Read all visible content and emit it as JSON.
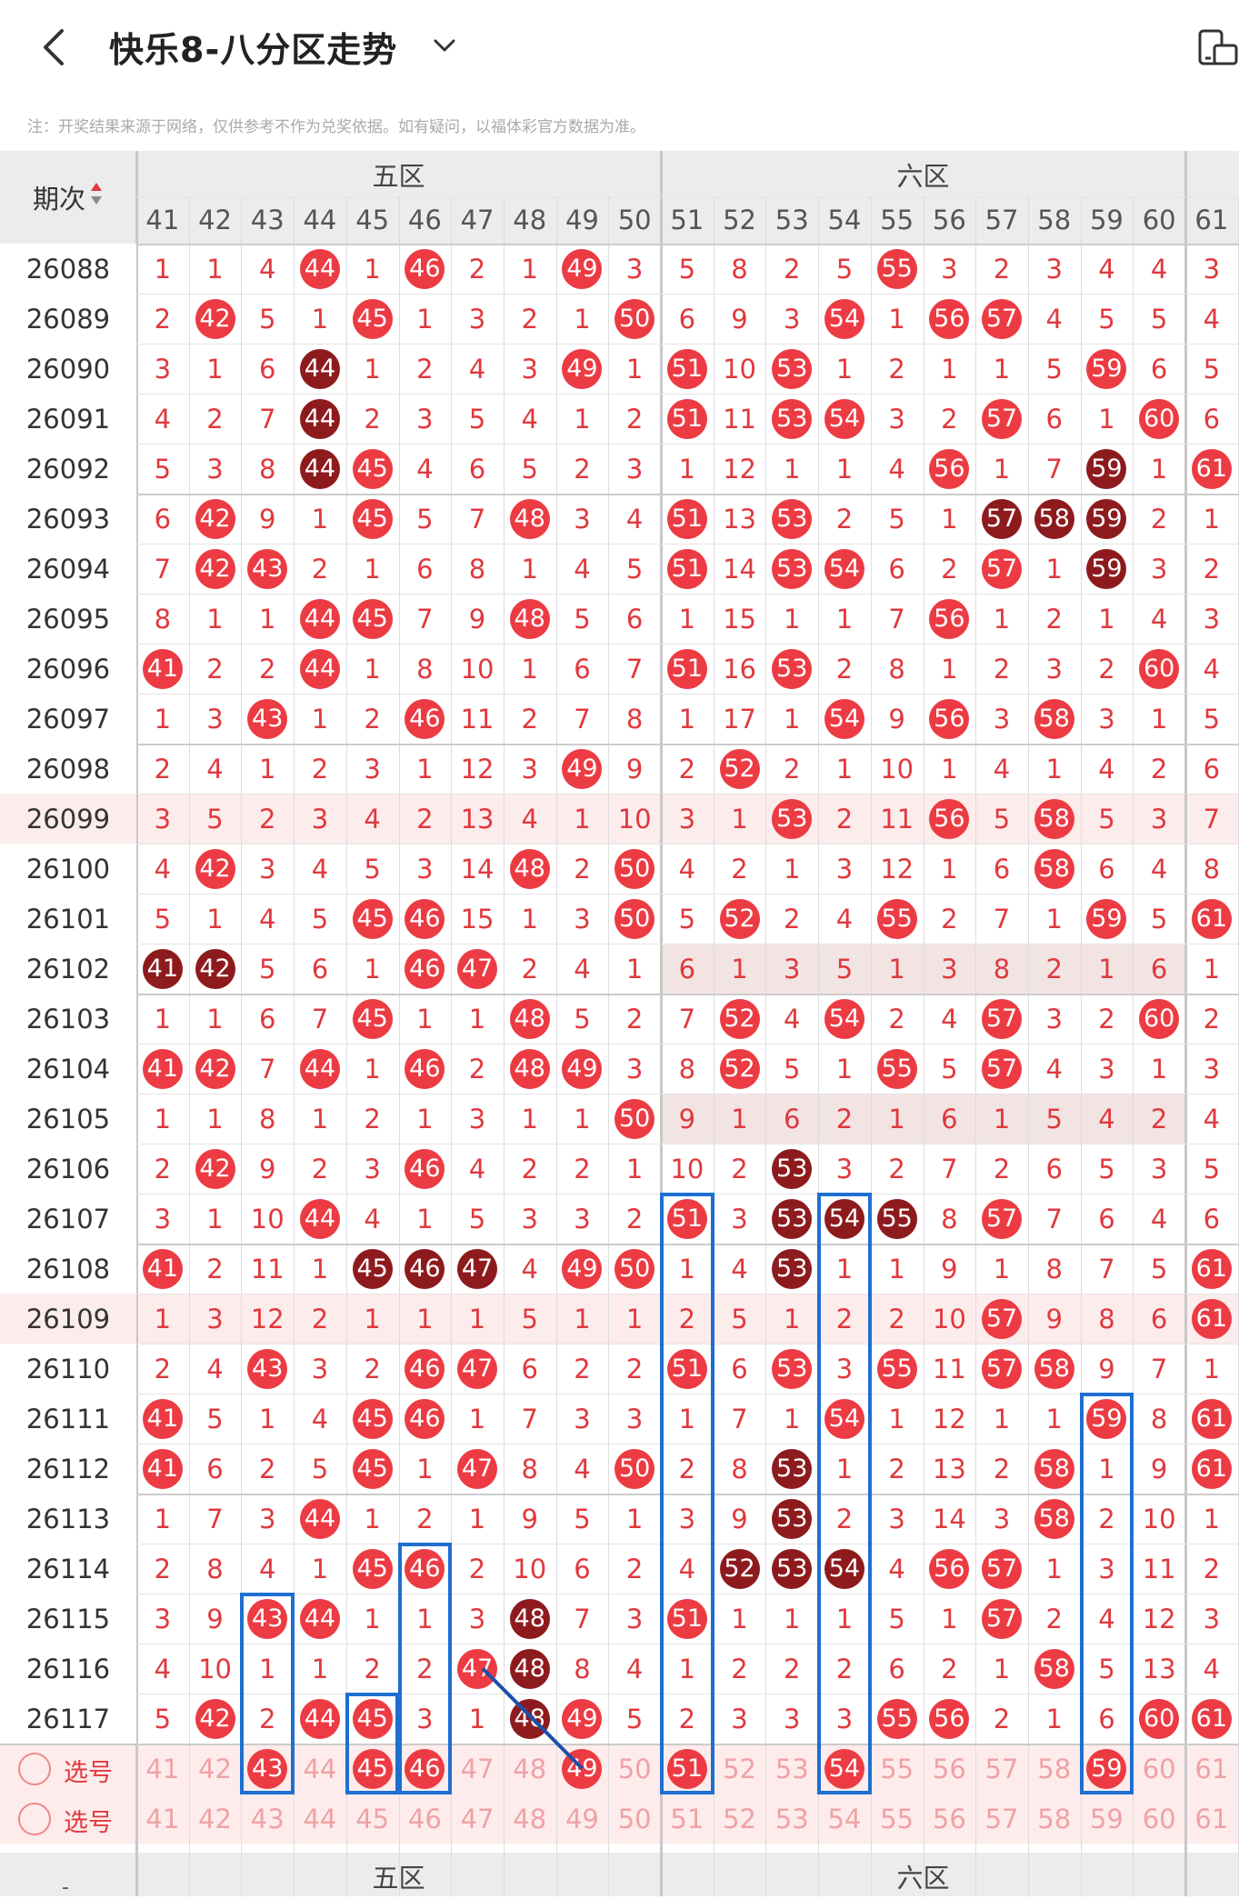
{
  "header": {
    "title": "快乐8-八分区走势",
    "back_icon": "back-arrow-icon",
    "dropdown_icon": "chevron-down-icon",
    "right_icon": "device-toggle-icon"
  },
  "note": "注：开奖结果来源于网络，仅供参考不作为兑奖依据。如有疑问，以福体彩官方数据为准。",
  "table": {
    "period_header": "期次",
    "zones": [
      "五区",
      "六区"
    ],
    "columns": [
      41,
      42,
      43,
      44,
      45,
      46,
      47,
      48,
      49,
      50,
      51,
      52,
      53,
      54,
      55,
      56,
      57,
      58,
      59,
      60,
      61
    ],
    "rows": [
      {
        "period": "26088",
        "cells": [
          "1",
          "1",
          "4",
          "44r",
          "1",
          "46r",
          "2",
          "1",
          "49r",
          "3",
          "5",
          "8",
          "2",
          "5",
          "55r",
          "3",
          "2",
          "3",
          "4",
          "4",
          "3"
        ]
      },
      {
        "period": "26089",
        "cells": [
          "2",
          "42r",
          "5",
          "1",
          "45r",
          "1",
          "3",
          "2",
          "1",
          "50r",
          "6",
          "9",
          "3",
          "54r",
          "1",
          "56r",
          "57r",
          "4",
          "5",
          "5",
          "4"
        ]
      },
      {
        "period": "26090",
        "cells": [
          "3",
          "1",
          "6",
          "44d",
          "1",
          "2",
          "4",
          "3",
          "49r",
          "1",
          "51r",
          "10",
          "53r",
          "1",
          "2",
          "1",
          "1",
          "5",
          "59r",
          "6",
          "5"
        ]
      },
      {
        "period": "26091",
        "cells": [
          "4",
          "2",
          "7",
          "44d",
          "2",
          "3",
          "5",
          "4",
          "1",
          "2",
          "51r",
          "11",
          "53r",
          "54r",
          "3",
          "2",
          "57r",
          "6",
          "1",
          "60r",
          "6"
        ]
      },
      {
        "period": "26092",
        "cells": [
          "5",
          "3",
          "8",
          "44d",
          "45r",
          "4",
          "6",
          "5",
          "2",
          "3",
          "1",
          "12",
          "1",
          "1",
          "4",
          "56r",
          "1",
          "7",
          "59d",
          "1",
          "61r"
        ]
      },
      {
        "period": "26093",
        "cells": [
          "6",
          "42r",
          "9",
          "1",
          "45r",
          "5",
          "7",
          "48r",
          "3",
          "4",
          "51r",
          "13",
          "53r",
          "2",
          "5",
          "1",
          "57d",
          "58d",
          "59d",
          "2",
          "1"
        ]
      },
      {
        "period": "26094",
        "cells": [
          "7",
          "42r",
          "43r",
          "2",
          "1",
          "6",
          "8",
          "1",
          "4",
          "5",
          "51r",
          "14",
          "53r",
          "54r",
          "6",
          "2",
          "57r",
          "1",
          "59d",
          "3",
          "2"
        ]
      },
      {
        "period": "26095",
        "cells": [
          "8",
          "1",
          "1",
          "44r",
          "45r",
          "7",
          "9",
          "48r",
          "5",
          "6",
          "1",
          "15",
          "1",
          "1",
          "7",
          "56r",
          "1",
          "2",
          "1",
          "4",
          "3"
        ]
      },
      {
        "period": "26096",
        "cells": [
          "41r",
          "2",
          "2",
          "44r",
          "1",
          "8",
          "10",
          "1",
          "6",
          "7",
          "51r",
          "16",
          "53r",
          "2",
          "8",
          "1",
          "2",
          "3",
          "2",
          "60r",
          "4"
        ]
      },
      {
        "period": "26097",
        "cells": [
          "1",
          "3",
          "43r",
          "1",
          "2",
          "46r",
          "11",
          "2",
          "7",
          "8",
          "1",
          "17",
          "1",
          "54r",
          "9",
          "56r",
          "3",
          "58r",
          "3",
          "1",
          "5"
        ]
      },
      {
        "period": "26098",
        "cells": [
          "2",
          "4",
          "1",
          "2",
          "3",
          "1",
          "12",
          "3",
          "49r",
          "9",
          "2",
          "52r",
          "2",
          "1",
          "10",
          "1",
          "4",
          "1",
          "4",
          "2",
          "6"
        ]
      },
      {
        "period": "26099",
        "cells": [
          "3",
          "5",
          "2",
          "3",
          "4",
          "2",
          "13",
          "4",
          "1",
          "10",
          "3",
          "1",
          "53r",
          "2",
          "11",
          "56r",
          "5",
          "58r",
          "5",
          "3",
          "7"
        ]
      },
      {
        "period": "26100",
        "cells": [
          "4",
          "42r",
          "3",
          "4",
          "5",
          "3",
          "14",
          "48r",
          "2",
          "50r",
          "4",
          "2",
          "1",
          "3",
          "12",
          "1",
          "6",
          "58r",
          "6",
          "4",
          "8"
        ]
      },
      {
        "period": "26101",
        "cells": [
          "5",
          "1",
          "4",
          "5",
          "45r",
          "46r",
          "15",
          "1",
          "3",
          "50r",
          "5",
          "52r",
          "2",
          "4",
          "55r",
          "2",
          "7",
          "1",
          "59r",
          "5",
          "61r"
        ]
      },
      {
        "period": "26102",
        "cells": [
          "41d",
          "42d",
          "5",
          "6",
          "1",
          "46r",
          "47r",
          "2",
          "4",
          "1",
          "6",
          "1",
          "3",
          "5",
          "1",
          "3",
          "8",
          "2",
          "1",
          "6",
          "1"
        ]
      },
      {
        "period": "26103",
        "cells": [
          "1",
          "1",
          "6",
          "7",
          "45r",
          "1",
          "1",
          "48r",
          "5",
          "2",
          "7",
          "52r",
          "4",
          "54r",
          "2",
          "4",
          "57r",
          "3",
          "2",
          "60r",
          "2"
        ]
      },
      {
        "period": "26104",
        "cells": [
          "41r",
          "42r",
          "7",
          "44r",
          "1",
          "46r",
          "2",
          "48r",
          "49r",
          "3",
          "8",
          "52r",
          "5",
          "1",
          "55r",
          "5",
          "57r",
          "4",
          "3",
          "1",
          "3"
        ]
      },
      {
        "period": "26105",
        "cells": [
          "1",
          "1",
          "8",
          "1",
          "2",
          "1",
          "3",
          "1",
          "1",
          "50r",
          "9",
          "1",
          "6",
          "2",
          "1",
          "6",
          "1",
          "5",
          "4",
          "2",
          "4"
        ]
      },
      {
        "period": "26106",
        "cells": [
          "2",
          "42r",
          "9",
          "2",
          "3",
          "46r",
          "4",
          "2",
          "2",
          "1",
          "10",
          "2",
          "53d",
          "3",
          "2",
          "7",
          "2",
          "6",
          "5",
          "3",
          "5"
        ]
      },
      {
        "period": "26107",
        "cells": [
          "3",
          "1",
          "10",
          "44r",
          "4",
          "1",
          "5",
          "3",
          "3",
          "2",
          "51r",
          "3",
          "53d",
          "54d",
          "55d",
          "8",
          "57r",
          "7",
          "6",
          "4",
          "6"
        ]
      },
      {
        "period": "26108",
        "cells": [
          "41r",
          "2",
          "11",
          "1",
          "45d",
          "46d",
          "47d",
          "4",
          "49r",
          "50r",
          "1",
          "4",
          "53d",
          "1",
          "1",
          "9",
          "1",
          "8",
          "7",
          "5",
          "61r"
        ]
      },
      {
        "period": "26109",
        "cells": [
          "1",
          "3",
          "12",
          "2",
          "1",
          "1",
          "1",
          "5",
          "1",
          "1",
          "2",
          "5",
          "1",
          "2",
          "2",
          "10",
          "57r",
          "9",
          "8",
          "6",
          "61r"
        ]
      },
      {
        "period": "26110",
        "cells": [
          "2",
          "4",
          "43r",
          "3",
          "2",
          "46r",
          "47r",
          "6",
          "2",
          "2",
          "51r",
          "6",
          "53r",
          "3",
          "55r",
          "11",
          "57r",
          "58r",
          "9",
          "7",
          "1"
        ]
      },
      {
        "period": "26111",
        "cells": [
          "41r",
          "5",
          "1",
          "4",
          "45r",
          "46r",
          "1",
          "7",
          "3",
          "3",
          "1",
          "7",
          "1",
          "54r",
          "1",
          "12",
          "1",
          "1",
          "59r",
          "8",
          "61r"
        ]
      },
      {
        "period": "26112",
        "cells": [
          "41r",
          "6",
          "2",
          "5",
          "45r",
          "1",
          "47r",
          "8",
          "4",
          "50r",
          "2",
          "8",
          "53d",
          "1",
          "2",
          "13",
          "2",
          "58r",
          "1",
          "9",
          "61r"
        ]
      },
      {
        "period": "26113",
        "cells": [
          "1",
          "7",
          "3",
          "44r",
          "1",
          "2",
          "1",
          "9",
          "5",
          "1",
          "3",
          "9",
          "53d",
          "2",
          "3",
          "14",
          "3",
          "58r",
          "2",
          "10",
          "1"
        ]
      },
      {
        "period": "26114",
        "cells": [
          "2",
          "8",
          "4",
          "1",
          "45r",
          "46r",
          "2",
          "10",
          "6",
          "2",
          "4",
          "52d",
          "53d",
          "54d",
          "4",
          "56r",
          "57r",
          "1",
          "3",
          "11",
          "2"
        ]
      },
      {
        "period": "26115",
        "cells": [
          "3",
          "9",
          "43r",
          "44r",
          "1",
          "1",
          "3",
          "48d",
          "7",
          "3",
          "51r",
          "1",
          "1",
          "1",
          "5",
          "1",
          "57r",
          "2",
          "4",
          "12",
          "3"
        ]
      },
      {
        "period": "26116",
        "cells": [
          "4",
          "10",
          "1",
          "1",
          "2",
          "2",
          "47r",
          "48d",
          "8",
          "4",
          "1",
          "2",
          "2",
          "2",
          "6",
          "2",
          "1",
          "58r",
          "5",
          "13",
          "4"
        ]
      },
      {
        "period": "26117",
        "cells": [
          "5",
          "42r",
          "2",
          "44r",
          "45r",
          "3",
          "1",
          "48d",
          "49r",
          "5",
          "2",
          "3",
          "3",
          "3",
          "55r",
          "56r",
          "2",
          "1",
          "6",
          "60r",
          "61r"
        ]
      }
    ],
    "select_rows": [
      {
        "label": "选号",
        "cells": [
          "41",
          "42",
          "43b",
          "44",
          "45b",
          "46b",
          "47",
          "48",
          "49b",
          "50",
          "51b",
          "52",
          "53",
          "54b",
          "55",
          "56",
          "57",
          "58",
          "59b",
          "60",
          "61"
        ]
      },
      {
        "label": "选号",
        "cells": [
          "41",
          "42",
          "43",
          "44",
          "45",
          "46",
          "47",
          "48",
          "49",
          "50",
          "51",
          "52",
          "53",
          "54",
          "55",
          "56",
          "57",
          "58",
          "59",
          "60",
          "61"
        ]
      }
    ],
    "footer_zones": [
      "五区",
      "六区"
    ],
    "footer_mark": "-"
  },
  "colors": {
    "ball_red": "#ec3b43",
    "ball_dark": "#8d1b1e",
    "miss_text": "#e0393e",
    "highlight_box": "#1e6fd1",
    "header_bg": "#ececec"
  }
}
